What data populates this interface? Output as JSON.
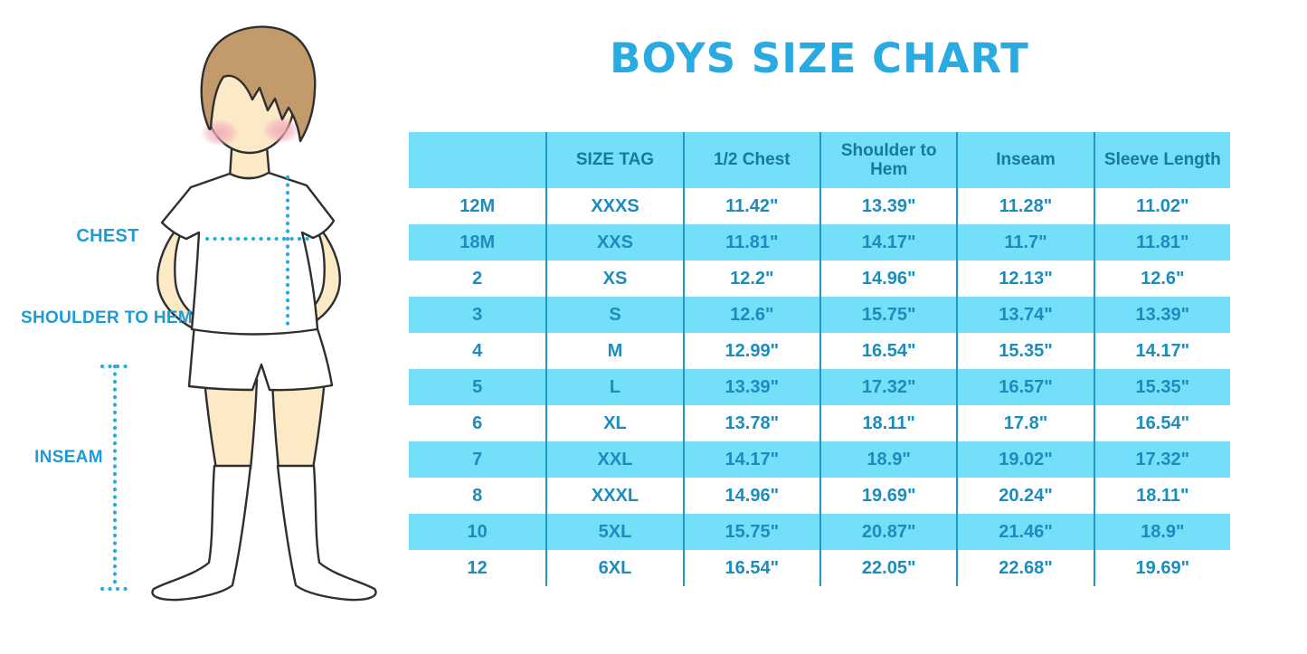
{
  "page": {
    "title": "BOYS SIZE CHART"
  },
  "figure": {
    "description": "cartoon boy in white t-shirt, shorts and knee socks with dotted measurement guides",
    "labels": {
      "chest": "CHEST",
      "shoulder_to_hem": "SHOULDER TO HEM",
      "inseam": "INSEAM"
    }
  },
  "chart_data": {
    "type": "table",
    "title": "BOYS SIZE CHART",
    "columns": [
      "",
      "SIZE TAG",
      "1/2 Chest",
      "Shoulder to Hem",
      "Inseam",
      "Sleeve Length"
    ],
    "rows": [
      [
        "12M",
        "XXXS",
        "11.42\"",
        "13.39\"",
        "11.28\"",
        "11.02\""
      ],
      [
        "18M",
        "XXS",
        "11.81\"",
        "14.17\"",
        "11.7\"",
        "11.81\""
      ],
      [
        "2",
        "XS",
        "12.2\"",
        "14.96\"",
        "12.13\"",
        "12.6\""
      ],
      [
        "3",
        "S",
        "12.6\"",
        "15.75\"",
        "13.74\"",
        "13.39\""
      ],
      [
        "4",
        "M",
        "12.99\"",
        "16.54\"",
        "15.35\"",
        "14.17\""
      ],
      [
        "5",
        "L",
        "13.39\"",
        "17.32\"",
        "16.57\"",
        "15.35\""
      ],
      [
        "6",
        "XL",
        "13.78\"",
        "18.11\"",
        "17.8\"",
        "16.54\""
      ],
      [
        "7",
        "XXL",
        "14.17\"",
        "18.9\"",
        "19.02\"",
        "17.32\""
      ],
      [
        "8",
        "XXXL",
        "14.96\"",
        "19.69\"",
        "20.24\"",
        "18.11\""
      ],
      [
        "10",
        "5XL",
        "15.75\"",
        "20.87\"",
        "21.46\"",
        "18.9\""
      ],
      [
        "12",
        "6XL",
        "16.54\"",
        "22.05\"",
        "22.68\"",
        "19.69\""
      ]
    ],
    "row_striping": "white / light-blue alternating, header light-blue",
    "units": "inches"
  },
  "colors": {
    "title_blue": "#29ABE2",
    "table_cell_blue": "#74DFF8",
    "table_divider_blue": "#2099C8",
    "header_text": "#18789E",
    "data_text": "#1B8CBD",
    "label_text": "#1E9AD6",
    "dotted_line": "#29ABE2",
    "skin": "#FCE9C6",
    "hair_brown": "#C29A6C",
    "blush_pink": "#F2A9BC",
    "outline": "#2F2F2F"
  }
}
